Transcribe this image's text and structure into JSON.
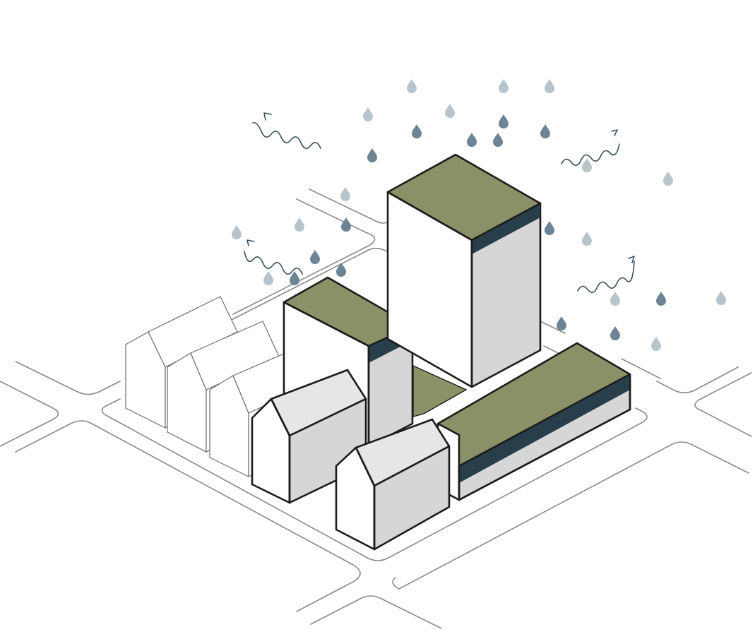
{
  "diagram": {
    "colors": {
      "green_roof": "#8b9166",
      "roof_band": "#283f4b",
      "wall_light": "#ffffff",
      "wall_shade": "#d6d6d6",
      "wall_mid": "#e6e6e6",
      "outline": "#1c1c1c",
      "street": "#8a8a8a",
      "raindrop_light": "#b8c4cc",
      "raindrop_dark": "#6c8494",
      "evaporation_arrow": "#36505e"
    },
    "icons": {
      "raindrop": "raindrop-icon",
      "evaporation": "wavy-arrow-icon"
    }
  }
}
